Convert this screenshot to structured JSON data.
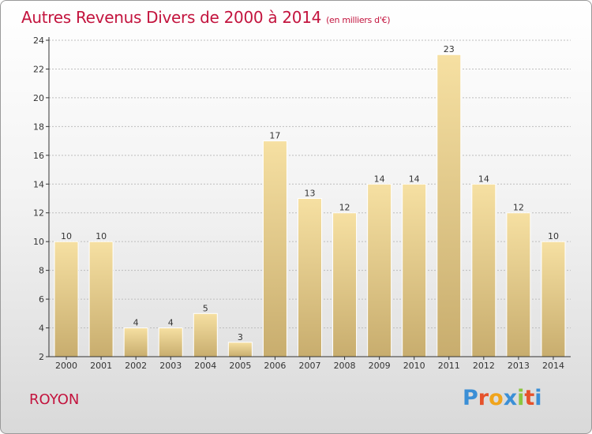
{
  "title": "Autres Revenus Divers de 2000 à 2014",
  "unit": "(en milliers d'€)",
  "region": "ROYON",
  "logo": {
    "letters": [
      "P",
      "r",
      "o",
      "x",
      "i",
      "t",
      "i"
    ],
    "colors": [
      "#3b8fd6",
      "#e6522b",
      "#f0a41c",
      "#3b8fd6",
      "#8cc63f",
      "#e6522b",
      "#3b8fd6"
    ]
  },
  "colors": {
    "title": "#c3143e",
    "bar_top": "#f6e0a2",
    "bar_bottom": "#c8ad6e",
    "grid": "#bdbdbd"
  },
  "chart_data": {
    "type": "bar",
    "title": "Autres Revenus Divers de 2000 à 2014",
    "categories": [
      "2000",
      "2001",
      "2002",
      "2003",
      "2004",
      "2005",
      "2006",
      "2007",
      "2008",
      "2009",
      "2010",
      "2011",
      "2012",
      "2013",
      "2014"
    ],
    "values": [
      10,
      10,
      4,
      4,
      5,
      3,
      17,
      13,
      12,
      14,
      14,
      23,
      14,
      12,
      10
    ],
    "xlabel": "",
    "ylabel": "",
    "ylim": [
      2,
      24
    ],
    "yticks": [
      2,
      4,
      6,
      8,
      10,
      12,
      14,
      16,
      18,
      20,
      22,
      24
    ],
    "grid": true
  }
}
